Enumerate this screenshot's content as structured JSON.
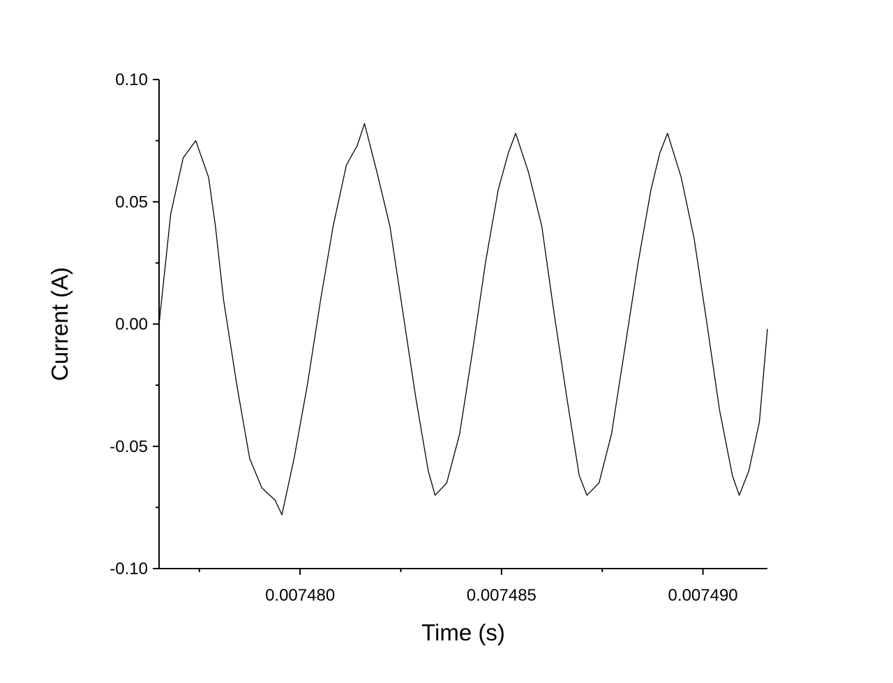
{
  "chart_data": {
    "type": "line",
    "title": "",
    "xlabel": "Time (s)",
    "ylabel": "Current (A)",
    "xlim": [
      0.0074765,
      0.0074916
    ],
    "ylim": [
      -0.1,
      0.1
    ],
    "x_ticks": [
      {
        "value": 0.00748,
        "label": "0.007480"
      },
      {
        "value": 0.007485,
        "label": "0.007485"
      },
      {
        "value": 0.00749,
        "label": "0.007490"
      }
    ],
    "x_minor_ticks": [
      0.0074775,
      0.0074825,
      0.0074875
    ],
    "y_ticks": [
      {
        "value": 0.1,
        "label": "0.10"
      },
      {
        "value": 0.05,
        "label": "0.05"
      },
      {
        "value": 0.0,
        "label": "0.00"
      },
      {
        "value": -0.05,
        "label": "-0.05"
      },
      {
        "value": -0.1,
        "label": "-0.10"
      }
    ],
    "y_minor_ticks": [
      0.075,
      0.025,
      -0.025,
      -0.075
    ],
    "grid": false,
    "line_color": "#000000",
    "series": [
      {
        "x": [
          0.0074765,
          0.00747679,
          0.0074771,
          0.00747741,
          0.00747773,
          0.0074779,
          0.0074781,
          0.00747843,
          0.00747875,
          0.00747905,
          0.00747938,
          0.00747955,
          0.00747985,
          0.00748018,
          0.00748051,
          0.00748082,
          0.00748115,
          0.00748142,
          0.0074816,
          0.00748191,
          0.00748223,
          0.00748255,
          0.00748287,
          0.00748318,
          0.00748335,
          0.00748364,
          0.00748396,
          0.00748429,
          0.0074846,
          0.00748492,
          0.00748517,
          0.00748535,
          0.00748567,
          0.007486,
          0.0074863,
          0.00748662,
          0.00748693,
          0.00748712,
          0.00748742,
          0.00748773,
          0.00748806,
          0.00748839,
          0.00748871,
          0.00748893,
          0.00748912,
          0.00748946,
          0.00748978,
          0.0074901,
          0.00749041,
          0.00749073,
          0.0074909,
          0.00749114,
          0.0074914,
          0.0074916
        ],
        "y": [
          0.0,
          0.045,
          0.068,
          0.075,
          0.06,
          0.04,
          0.01,
          -0.025,
          -0.055,
          -0.067,
          -0.072,
          -0.078,
          -0.055,
          -0.025,
          0.01,
          0.04,
          0.065,
          0.073,
          0.082,
          0.062,
          0.04,
          0.005,
          -0.03,
          -0.06,
          -0.07,
          -0.065,
          -0.045,
          -0.01,
          0.025,
          0.055,
          0.07,
          0.078,
          0.062,
          0.04,
          0.005,
          -0.03,
          -0.062,
          -0.07,
          -0.065,
          -0.045,
          -0.01,
          0.025,
          0.055,
          0.07,
          0.078,
          0.06,
          0.035,
          0.0,
          -0.035,
          -0.062,
          -0.07,
          -0.06,
          -0.04,
          -0.002
        ]
      }
    ]
  }
}
